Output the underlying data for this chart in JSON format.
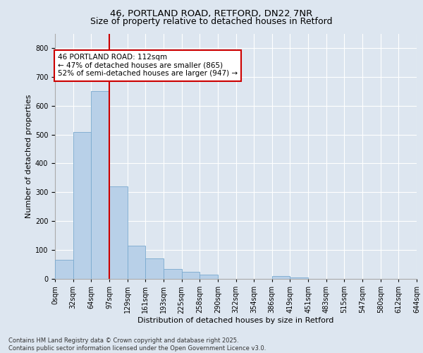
{
  "title_line1": "46, PORTLAND ROAD, RETFORD, DN22 7NR",
  "title_line2": "Size of property relative to detached houses in Retford",
  "xlabel": "Distribution of detached houses by size in Retford",
  "ylabel": "Number of detached properties",
  "bin_labels": [
    "0sqm",
    "32sqm",
    "64sqm",
    "97sqm",
    "129sqm",
    "161sqm",
    "193sqm",
    "225sqm",
    "258sqm",
    "290sqm",
    "322sqm",
    "354sqm",
    "386sqm",
    "419sqm",
    "451sqm",
    "483sqm",
    "515sqm",
    "547sqm",
    "580sqm",
    "612sqm",
    "644sqm"
  ],
  "bar_heights": [
    65,
    510,
    650,
    320,
    115,
    70,
    35,
    25,
    15,
    0,
    0,
    0,
    10,
    5,
    0,
    0,
    0,
    0,
    0,
    0
  ],
  "bar_color": "#b8d0e8",
  "bar_edge_color": "#7aaacf",
  "vline_color": "#cc0000",
  "annotation_text": "46 PORTLAND ROAD: 112sqm\n← 47% of detached houses are smaller (865)\n52% of semi-detached houses are larger (947) →",
  "annotation_box_color": "#ffffff",
  "annotation_box_edge": "#cc0000",
  "bg_color": "#dde6f0",
  "plot_bg_color": "#dde6f0",
  "grid_color": "#ffffff",
  "ylim": [
    0,
    850
  ],
  "yticks": [
    0,
    100,
    200,
    300,
    400,
    500,
    600,
    700,
    800
  ],
  "footnote": "Contains HM Land Registry data © Crown copyright and database right 2025.\nContains public sector information licensed under the Open Government Licence v3.0.",
  "title_fontsize": 9.5,
  "subtitle_fontsize": 9,
  "label_fontsize": 8,
  "tick_fontsize": 7,
  "footnote_fontsize": 6,
  "annot_fontsize": 7.5
}
